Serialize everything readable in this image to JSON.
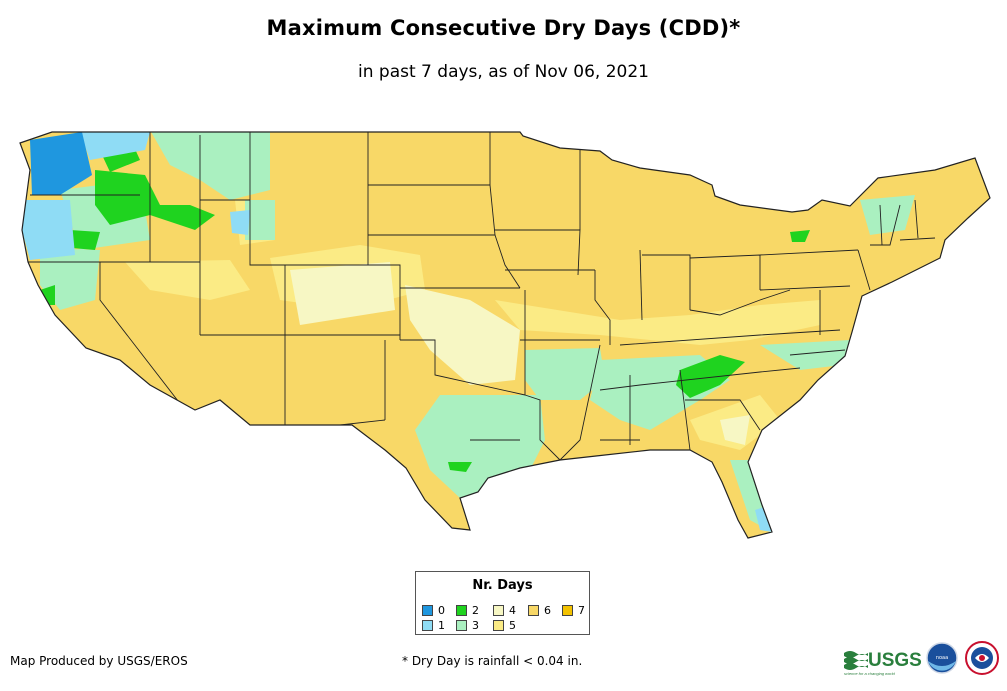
{
  "title": "Maximum Consecutive Dry Days (CDD)*",
  "subtitle": "in past 7 days, as of Nov 06, 2021",
  "legend": {
    "title": "Nr. Days",
    "items": [
      {
        "label": "0",
        "color": "#1f97df"
      },
      {
        "label": "1",
        "color": "#8fdcf5"
      },
      {
        "label": "2",
        "color": "#1fd31f"
      },
      {
        "label": "3",
        "color": "#aaf0c0"
      },
      {
        "label": "4",
        "color": "#f7f7c4"
      },
      {
        "label": "5",
        "color": "#fbeb85"
      },
      {
        "label": "6",
        "color": "#f8d867"
      },
      {
        "label": "7",
        "color": "#f3c200"
      }
    ]
  },
  "credit": "Map Produced by USGS/EROS",
  "footnote": "* Dry Day is rainfall < 0.04 in.",
  "logos": {
    "usgs": "USGS",
    "usgs_tagline": "science for a changing world",
    "noaa": "noaa"
  },
  "colors": {
    "border": "#222222"
  }
}
